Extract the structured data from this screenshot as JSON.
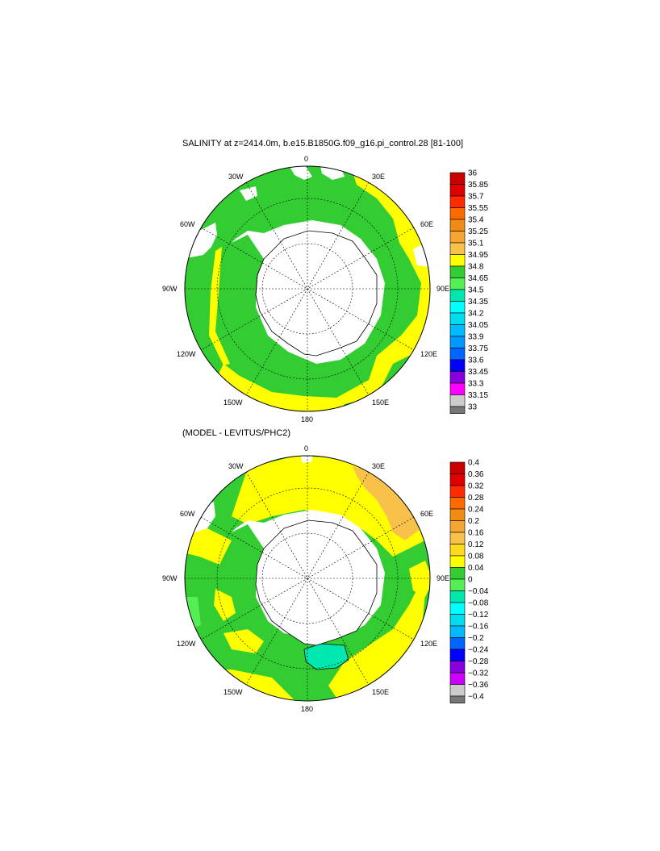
{
  "top": {
    "title": "SALINITY at z=2414.0m, b.e15.B1850G.f09_g16.pi_control.28 [81-100]",
    "colorbar": {
      "labels": [
        "36",
        "35.85",
        "35.7",
        "35.55",
        "35.4",
        "35.25",
        "35.1",
        "34.95",
        "34.8",
        "34.65",
        "34.5",
        "34.35",
        "34.2",
        "34.05",
        "33.9",
        "33.75",
        "33.6",
        "33.45",
        "33.3",
        "33.15",
        "33"
      ],
      "colors": [
        "#c80000",
        "#e00000",
        "#ff2a00",
        "#ff6a00",
        "#f08c14",
        "#f4a632",
        "#f8c24a",
        "#ffff00",
        "#33cc33",
        "#55ee55",
        "#00e8b0",
        "#00ffff",
        "#00ddee",
        "#00bbff",
        "#0099ff",
        "#0066ff",
        "#0000ff",
        "#8800dd",
        "#ff00ff",
        "#cccccc"
      ]
    }
  },
  "bottom": {
    "title": "(MODEL - LEVITUS/PHC2)",
    "colorbar": {
      "labels": [
        "0.4",
        "0.36",
        "0.32",
        "0.28",
        "0.24",
        "0.2",
        "0.16",
        "0.12",
        "0.08",
        "0.04",
        "0",
        "−0.04",
        "−0.08",
        "−0.12",
        "−0.16",
        "−0.2",
        "−0.24",
        "−0.28",
        "−0.32",
        "−0.36",
        "−0.4"
      ],
      "colors": [
        "#c80000",
        "#e00000",
        "#ff2a00",
        "#ff6a00",
        "#f08c14",
        "#f4a632",
        "#f8c24a",
        "#ffd820",
        "#ffff00",
        "#33cc33",
        "#55ee55",
        "#00e8b0",
        "#00ffff",
        "#00ddee",
        "#00bbff",
        "#0066ff",
        "#0000ff",
        "#8800dd",
        "#cc00ff",
        "#cccccc"
      ]
    }
  },
  "map_labels": {
    "lon_0": "0",
    "lon_30e": "30E",
    "lon_60e": "60E",
    "lon_90e": "90E",
    "lon_120e": "120E",
    "lon_150e": "150E",
    "lon_180": "180",
    "lon_150w": "150W",
    "lon_120w": "120W",
    "lon_90w": "90W",
    "lon_60w": "60W",
    "lon_30w": "30W"
  },
  "colors": {
    "green": "#33cc33",
    "yellow": "#ffff00",
    "orange": "#f8c24a",
    "teal": "#00e8b0",
    "land": "#ffffff"
  }
}
